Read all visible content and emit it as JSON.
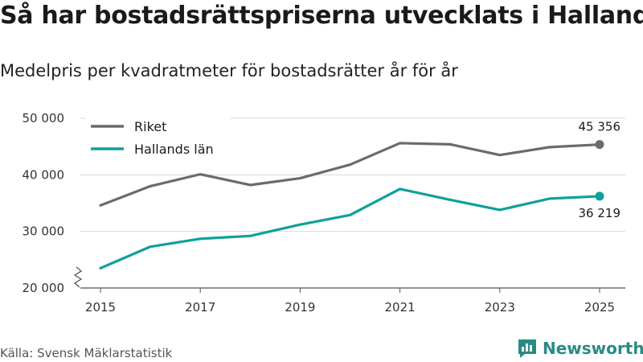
{
  "chart_data": {
    "type": "line",
    "title": "Så har bostadsrättspriserna utvecklats i Halland",
    "subtitle": "Medelpris per kvadratmeter för bostadsrätter år för år",
    "x": [
      2015,
      2016,
      2017,
      2018,
      2019,
      2020,
      2021,
      2022,
      2023,
      2024,
      2025
    ],
    "x_ticks": [
      "2015",
      "2017",
      "2019",
      "2021",
      "2023",
      "2025"
    ],
    "y_ticks": [
      "20 000",
      "30 000",
      "40 000",
      "50 000"
    ],
    "ylim": [
      20000,
      50000
    ],
    "series": [
      {
        "name": "Riket",
        "color": "#6b6b6b",
        "values": [
          34600,
          38000,
          40100,
          38200,
          39400,
          41800,
          45600,
          45400,
          43500,
          44900,
          45356
        ],
        "end_label": "45 356"
      },
      {
        "name": "Hallands län",
        "color": "#0ea19a",
        "values": [
          23500,
          27300,
          28700,
          29200,
          31200,
          32900,
          37500,
          35600,
          33800,
          35800,
          36219
        ],
        "end_label": "36 219"
      }
    ],
    "legend": "top-left"
  },
  "source": "Källa: Svensk Mäklarstatistik",
  "brand": "Newsworthy"
}
